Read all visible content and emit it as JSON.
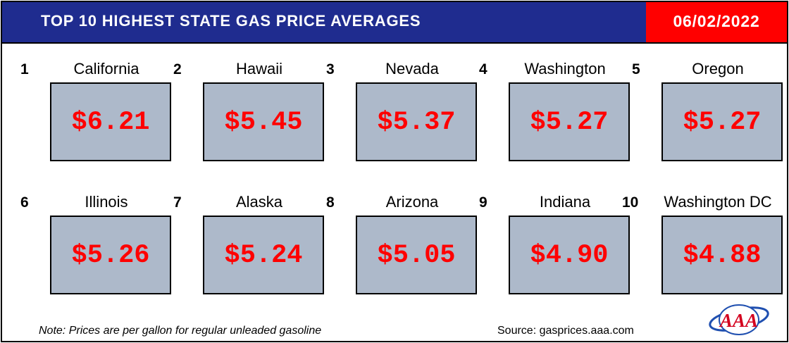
{
  "header": {
    "title": "TOP 10 HIGHEST STATE GAS PRICE AVERAGES",
    "date": "06/02/2022"
  },
  "entries": [
    {
      "rank": "1",
      "state": "California",
      "price": "$6.21"
    },
    {
      "rank": "2",
      "state": "Hawaii",
      "price": "$5.45"
    },
    {
      "rank": "3",
      "state": "Nevada",
      "price": "$5.37"
    },
    {
      "rank": "4",
      "state": "Washington",
      "price": "$5.27"
    },
    {
      "rank": "5",
      "state": "Oregon",
      "price": "$5.27"
    },
    {
      "rank": "6",
      "state": "Illinois",
      "price": "$5.26"
    },
    {
      "rank": "7",
      "state": "Alaska",
      "price": "$5.24"
    },
    {
      "rank": "8",
      "state": "Arizona",
      "price": "$5.05"
    },
    {
      "rank": "9",
      "state": "Indiana",
      "price": "$4.90"
    },
    {
      "rank": "10",
      "state": "Washington DC",
      "price": "$4.88"
    }
  ],
  "footer": {
    "note": "Note: Prices are per gallon for regular unleaded gasoline",
    "source": "Source: gasprices.aaa.com",
    "logo_text": "AAA"
  },
  "colors": {
    "header_blue": "#1f2c8f",
    "date_red": "#ff0000",
    "price_red": "#ff0000",
    "box_gray": "#adb9ca"
  }
}
